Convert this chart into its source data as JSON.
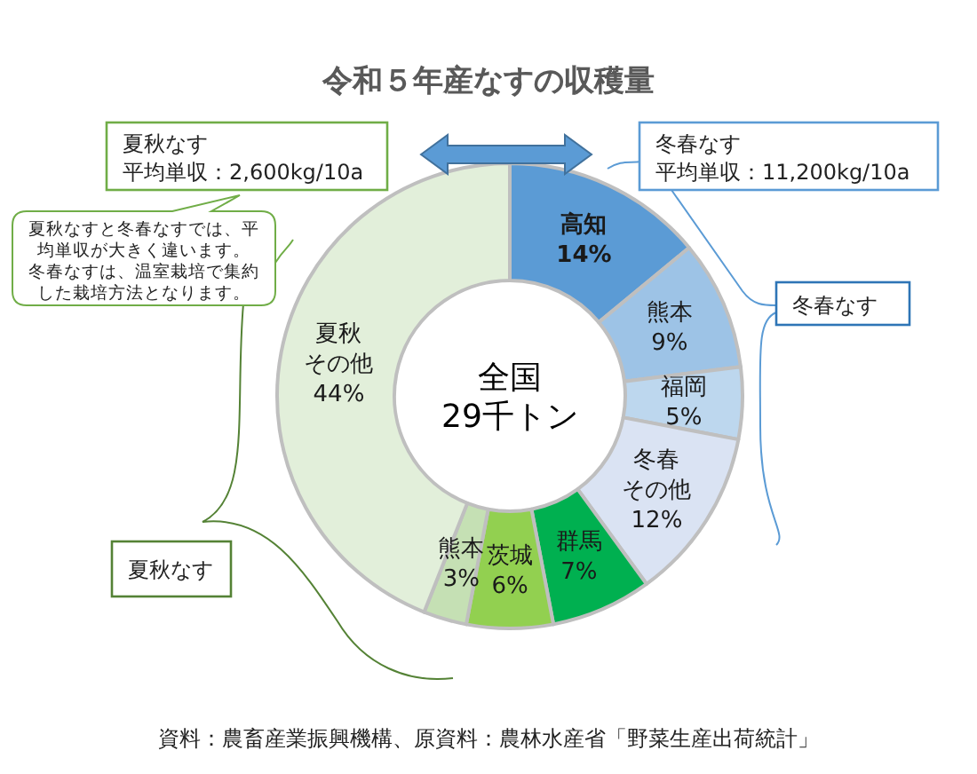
{
  "chart_data": {
    "type": "donut",
    "title": "令和５年産なすの収穫量",
    "categories": [
      "高知",
      "熊本",
      "福岡",
      "冬春その他",
      "群馬",
      "茨城",
      "熊本",
      "夏秋その他"
    ],
    "values": [
      14,
      9,
      5,
      12,
      7,
      6,
      3,
      44
    ],
    "value_labels": [
      "14%",
      "9%",
      "5%",
      "12%",
      "7%",
      "6%",
      "3%",
      "44%"
    ],
    "colors": [
      "#5b9bd5",
      "#9dc3e6",
      "#bdd7ee",
      "#dae3f3",
      "#00b050",
      "#92d050",
      "#c5e0b4",
      "#e2efda"
    ],
    "annotations": [
      "全国\n29千トン",
      "夏秋なす",
      "平均単収：2,600kg/10a",
      "冬春なす",
      "平均単収：11,200kg/10a",
      "夏秋なすと冬春なすでは、平均単収が大きく違います。",
      "冬春なすは、温室栽培で集約した栽培方法となります。",
      "冬春なす",
      "夏秋なす",
      "資料：農畜産業振興機構、原資料：農林水産省「野菜生産出荷統計」"
    ]
  }
}
